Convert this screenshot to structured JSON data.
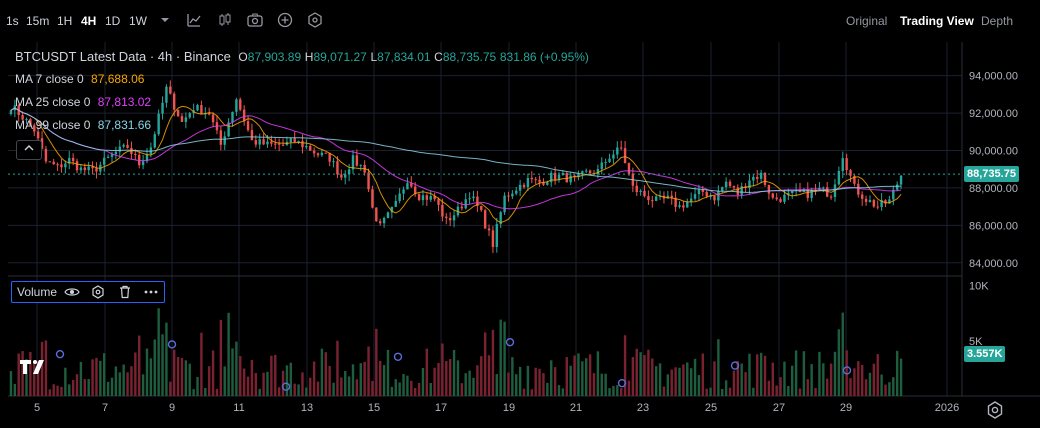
{
  "toolbar": {
    "intervals": [
      "1s",
      "15m",
      "1H",
      "4H",
      "1D",
      "1W"
    ],
    "active_interval": "4H",
    "views": [
      "Original",
      "Trading View",
      "Depth"
    ],
    "active_view": "Trading View"
  },
  "legend": {
    "symbol": "BTCUSDT Latest Data · 4h · Binance",
    "o_label": "O",
    "o": "87,903.89",
    "h_label": "H",
    "h": "89,071.27",
    "l_label": "L",
    "l": "87,834.01",
    "c_label": "C",
    "c": "88,735.75",
    "change": "831.86 (+0.95%)",
    "ma": [
      {
        "label": "MA 7 close 0",
        "value": "87,688.06",
        "color": "#f7a600"
      },
      {
        "label": "MA 25 close 0",
        "value": "87,813.02",
        "color": "#e040fb"
      },
      {
        "label": "MA 99 close 0",
        "value": "87,831.66",
        "color": "#8ad4e6"
      }
    ]
  },
  "volume_pane": {
    "label": "Volume",
    "value": "3.557K",
    "ticks": [
      "10K",
      "5K"
    ]
  },
  "current_price": "88,735.75",
  "colors": {
    "up": "#26a69a",
    "down": "#ef5350",
    "up_vol": "#1e5e3f",
    "down_vol": "#7a2230",
    "grid": "#1c2030",
    "axis_text": "#b2b5be"
  },
  "chart_data": {
    "type": "candlestick",
    "title": "BTCUSDT Latest Data · 4h · Binance",
    "y_ticks": [
      "94,000.00",
      "92,000.00",
      "90,000.00",
      "88,000.00",
      "86,000.00",
      "84,000.00"
    ],
    "ylim": [
      83400,
      95800
    ],
    "x_ticks": [
      "5",
      "7",
      "9",
      "11",
      "13",
      "15",
      "17",
      "19",
      "21",
      "23",
      "25",
      "27",
      "29",
      "2026"
    ],
    "anchors": [
      [
        0,
        92400
      ],
      [
        3,
        91800
      ],
      [
        6,
        91100
      ],
      [
        9,
        89400
      ],
      [
        12,
        89100
      ],
      [
        15,
        89500
      ],
      [
        18,
        89000
      ],
      [
        21,
        88900
      ],
      [
        24,
        89400
      ],
      [
        27,
        89900
      ],
      [
        30,
        90200
      ],
      [
        33,
        89300
      ],
      [
        36,
        90200
      ],
      [
        40,
        93300
      ],
      [
        44,
        91500
      ],
      [
        47,
        92300
      ],
      [
        51,
        92000
      ],
      [
        54,
        90300
      ],
      [
        58,
        92800
      ],
      [
        62,
        90500
      ],
      [
        66,
        90300
      ],
      [
        70,
        90300
      ],
      [
        73,
        90500
      ],
      [
        76,
        90200
      ],
      [
        79,
        89800
      ],
      [
        82,
        89600
      ],
      [
        85,
        88600
      ],
      [
        88,
        89500
      ],
      [
        91,
        89000
      ],
      [
        93,
        86900
      ],
      [
        95,
        85900
      ],
      [
        99,
        87100
      ],
      [
        102,
        88500
      ],
      [
        105,
        87600
      ],
      [
        109,
        87400
      ],
      [
        112,
        86200
      ],
      [
        115,
        86800
      ],
      [
        118,
        87700
      ],
      [
        121,
        86600
      ],
      [
        124,
        85000
      ],
      [
        127,
        87500
      ],
      [
        130,
        88000
      ],
      [
        133,
        88400
      ],
      [
        136,
        88300
      ],
      [
        139,
        88600
      ],
      [
        142,
        88600
      ],
      [
        145,
        88400
      ],
      [
        148,
        88800
      ],
      [
        151,
        88900
      ],
      [
        154,
        89700
      ],
      [
        157,
        90100
      ],
      [
        160,
        88000
      ],
      [
        163,
        87600
      ],
      [
        166,
        87300
      ],
      [
        169,
        87400
      ],
      [
        172,
        87000
      ],
      [
        175,
        87400
      ],
      [
        178,
        87800
      ],
      [
        181,
        87500
      ],
      [
        184,
        88300
      ],
      [
        187,
        87700
      ],
      [
        190,
        88500
      ],
      [
        193,
        88700
      ],
      [
        196,
        87400
      ],
      [
        199,
        87500
      ],
      [
        202,
        87700
      ],
      [
        205,
        87700
      ],
      [
        208,
        87900
      ],
      [
        211,
        87700
      ],
      [
        214,
        89800
      ],
      [
        217,
        88000
      ],
      [
        220,
        87400
      ],
      [
        223,
        87000
      ],
      [
        226,
        87300
      ],
      [
        229,
        88700
      ]
    ]
  }
}
